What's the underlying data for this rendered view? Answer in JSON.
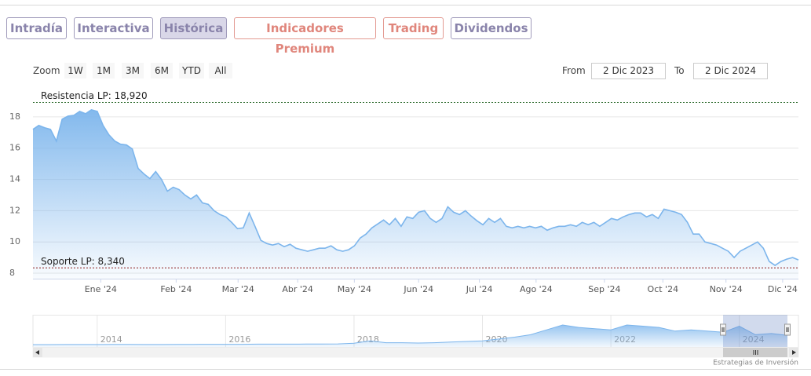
{
  "ui": {
    "tabs": [
      "Intradía",
      "Interactiva",
      "Histórica",
      "Indicadores Premium",
      "Trading",
      "Dividendos"
    ],
    "zoom_label": "Zoom",
    "zoom_buttons": [
      "1W",
      "1M",
      "3M",
      "6M",
      "YTD",
      "All"
    ],
    "from_label": "From",
    "from_value": "2 Dic 2023",
    "to_label": "To",
    "to_value": "2 Dic 2024",
    "credits": "Estrategias de Inversión"
  },
  "chart_data": [
    {
      "type": "area",
      "series": [
        {
          "color": "#7cb5ec",
          "values": [
            17.2,
            17.45,
            17.3,
            17.2,
            16.45,
            17.85,
            18.05,
            18.1,
            18.35,
            18.2,
            18.45,
            18.35,
            17.45,
            16.85,
            16.45,
            16.25,
            16.2,
            15.95,
            14.7,
            14.35,
            14.05,
            14.5,
            14,
            13.25,
            13.5,
            13.35,
            13,
            12.75,
            13,
            12.5,
            12.4,
            12,
            11.75,
            11.6,
            11.25,
            10.85,
            10.9,
            11.85,
            11,
            10.1,
            9.9,
            9.8,
            9.9,
            9.7,
            9.85,
            9.6,
            9.5,
            9.4,
            9.5,
            9.6,
            9.6,
            9.75,
            9.5,
            9.4,
            9.5,
            9.75,
            10.25,
            10.5,
            10.9,
            11.15,
            11.4,
            11.1,
            11.5,
            11,
            11.6,
            11.5,
            11.9,
            12,
            11.5,
            11.25,
            11.5,
            12.25,
            11.9,
            11.75,
            12,
            11.65,
            11.35,
            11.1,
            11.5,
            11.25,
            11.5,
            11,
            10.9,
            11,
            10.9,
            11,
            10.9,
            11,
            10.75,
            10.9,
            11,
            11,
            11.1,
            11,
            11.25,
            11.1,
            11.25,
            11,
            11.25,
            11.5,
            11.4,
            11.6,
            11.75,
            11.85,
            11.85,
            11.6,
            11.75,
            11.5,
            12.1,
            12,
            11.9,
            11.75,
            11.25,
            10.5,
            10.5,
            10,
            9.9,
            9.8,
            9.6,
            9.4,
            9,
            9.4,
            9.6,
            9.8,
            10,
            9.6,
            8.75,
            8.5,
            8.75,
            8.9,
            9,
            8.85
          ]
        }
      ],
      "xlim": [
        0,
        131
      ],
      "xticks": [
        {
          "value": 11.6,
          "label": "Ene '24"
        },
        {
          "value": 24.5,
          "label": "Feb '24"
        },
        {
          "value": 35.1,
          "label": "Mar '24"
        },
        {
          "value": 45.3,
          "label": "Abr '24"
        },
        {
          "value": 55,
          "label": "May '24"
        },
        {
          "value": 66,
          "label": "Jun '24"
        },
        {
          "value": 76.4,
          "label": "Jul '24"
        },
        {
          "value": 86.1,
          "label": "Ago '24"
        },
        {
          "value": 97.8,
          "label": "Sep '24"
        },
        {
          "value": 107.8,
          "label": "Oct '24"
        },
        {
          "value": 118.6,
          "label": "Nov '24"
        },
        {
          "value": 128.3,
          "label": "Dic '24"
        }
      ],
      "ylim": [
        7.65,
        19.7
      ],
      "yticks": [
        8,
        10,
        12,
        14,
        16,
        18
      ],
      "grid": true,
      "plot_lines": [
        {
          "label": "Resistencia LP: 18,920",
          "value": 18.92,
          "color": "#2e6b2e"
        },
        {
          "label": "Soporte LP: 8,340",
          "value": 8.34,
          "color": "#8b1a1a"
        }
      ]
    },
    {
      "type": "area",
      "series": [
        {
          "color": "#7cb5ec",
          "values": [
            1.9,
            1.9,
            2,
            2,
            2,
            2.1,
            2.1,
            2,
            2,
            2.1,
            2.1,
            2.2,
            2.2,
            2.2,
            2.3,
            2.3,
            2.3,
            2.4,
            2.4,
            2.5,
            3,
            5,
            3.5,
            3.5,
            3.2,
            3.5,
            4,
            4.5,
            5,
            6.5,
            8,
            10,
            14,
            18,
            16,
            15,
            14,
            18,
            17,
            16,
            13,
            14,
            13,
            12,
            17,
            10,
            11,
            9.5
          ]
        }
      ],
      "xlim": [
        0,
        47
      ],
      "ylim": [
        0,
        25.7
      ],
      "xticks": [
        {
          "value": 4,
          "label": "2014"
        },
        {
          "value": 12,
          "label": "2016"
        },
        {
          "value": 20,
          "label": "2018"
        },
        {
          "value": 28,
          "label": "2020"
        },
        {
          "value": 36,
          "label": "2022"
        },
        {
          "value": 44,
          "label": "2024"
        }
      ],
      "grid": true
    }
  ]
}
